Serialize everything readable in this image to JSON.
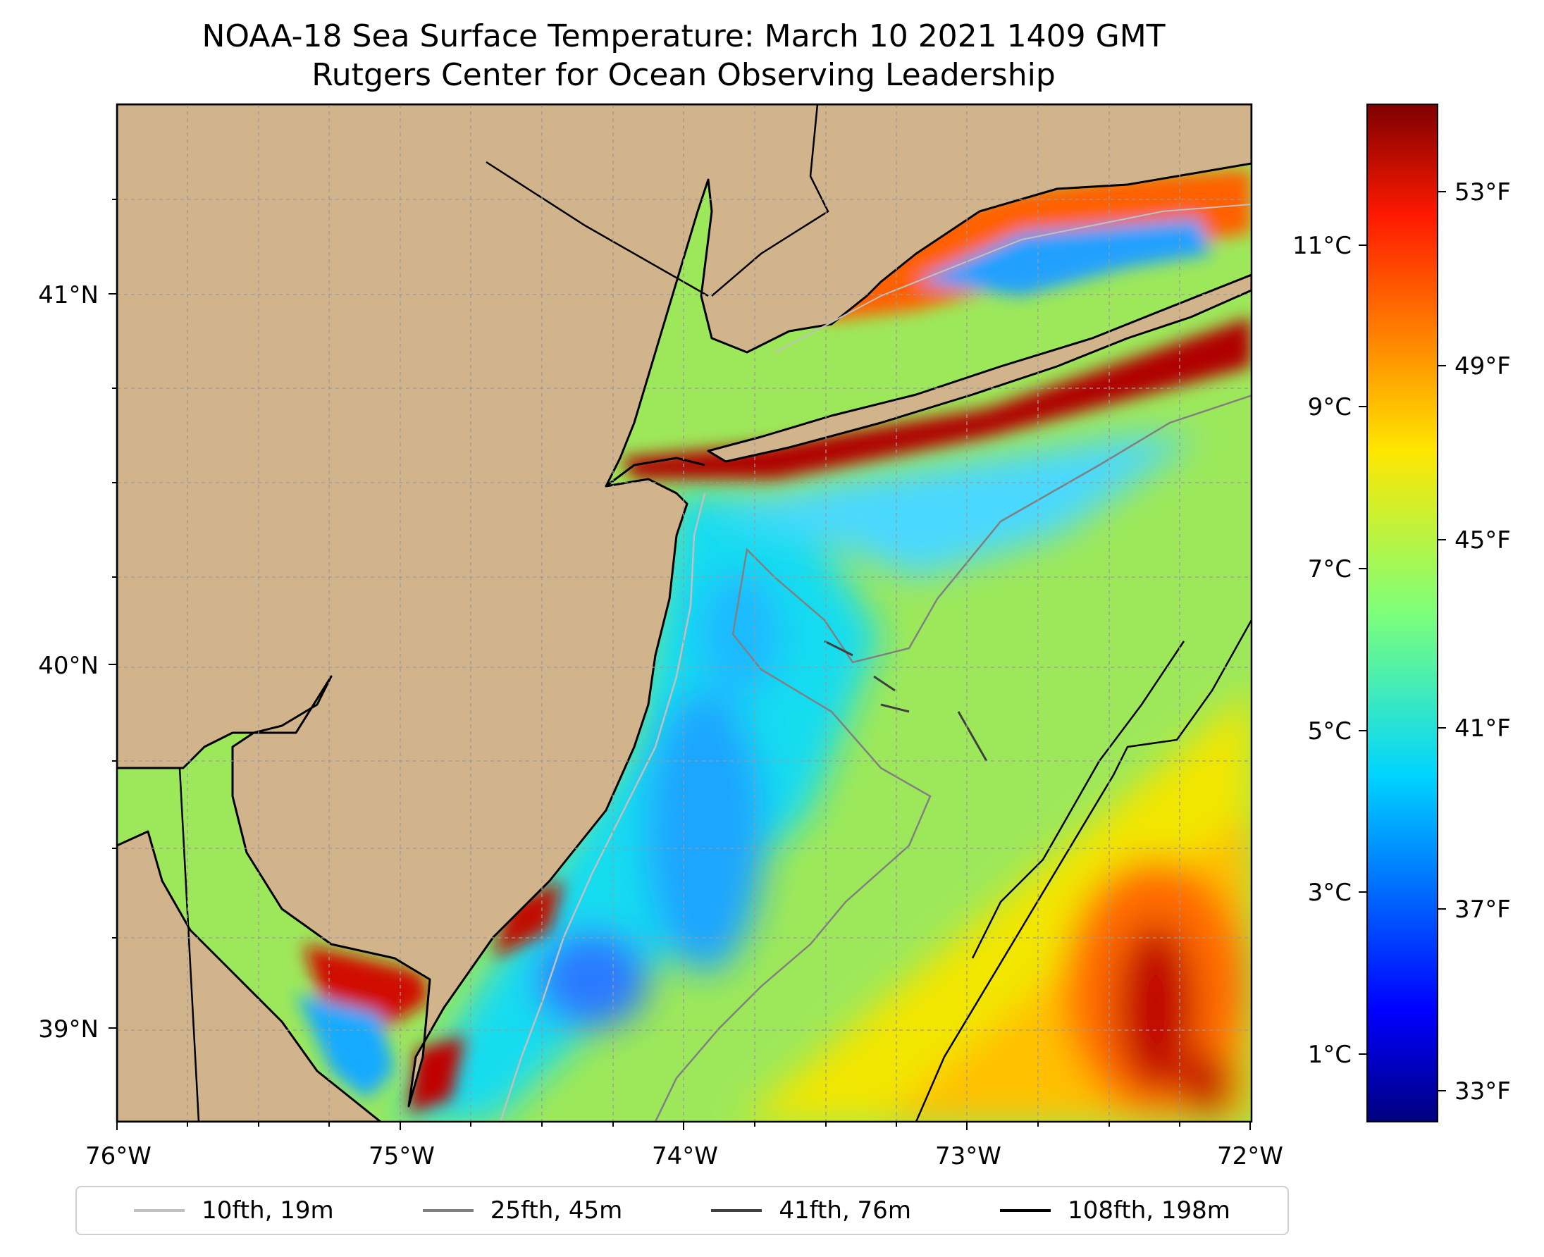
{
  "title": {
    "line1": "NOAA-18 Sea Surface Temperature: March 10 2021 1409 GMT",
    "line2": "Rutgers Center for Ocean Observing Leadership"
  },
  "map": {
    "lon_range": [
      -76,
      -72
    ],
    "lat_range": [
      38.75,
      41.55
    ],
    "land_color": "#d2b48c",
    "grid": true,
    "x_ticks": [
      "76°W",
      "75°W",
      "74°W",
      "73°W",
      "72°W"
    ],
    "y_ticks": [
      "41°N",
      "40°N",
      "39°N"
    ]
  },
  "colorbar": {
    "colormap": "jet",
    "celsius_ticks": [
      "11°C",
      "9°C",
      "7°C",
      "5°C",
      "3°C",
      "1°C"
    ],
    "fahrenheit_ticks": [
      "53°F",
      "49°F",
      "45°F",
      "41°F",
      "37°F",
      "33°F"
    ],
    "range_celsius": [
      0,
      12.6
    ]
  },
  "legend": {
    "placement": "bottom",
    "items": [
      {
        "label": "10fth, 19m",
        "color": "#c0c0c0"
      },
      {
        "label": "25fth, 45m",
        "color": "#808080"
      },
      {
        "label": "41fth, 76m",
        "color": "#404040"
      },
      {
        "label": "108fth, 198m",
        "color": "#000000"
      }
    ]
  }
}
